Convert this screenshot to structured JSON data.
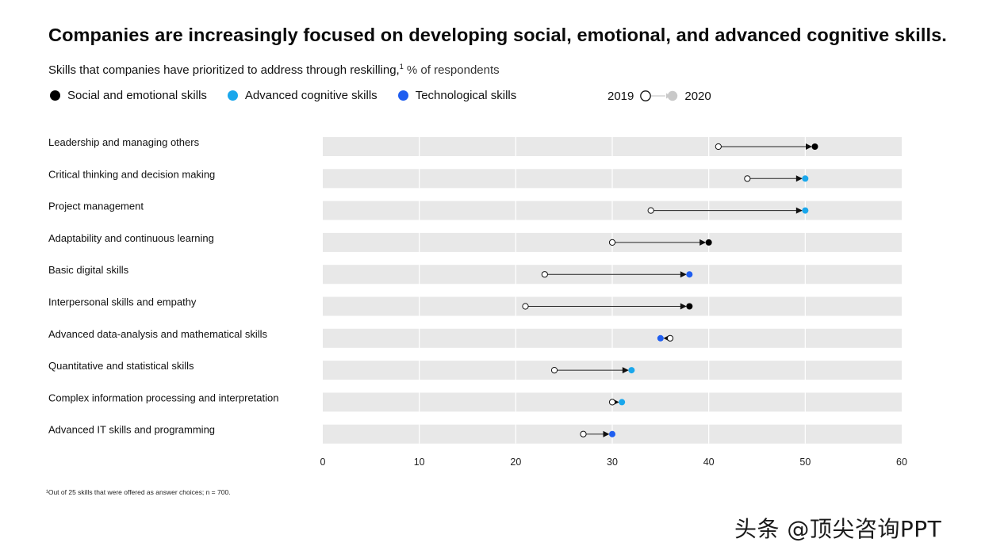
{
  "header": {
    "title": "Companies are increasingly focused on developing social, emotional, and advanced cognitive skills.",
    "subtitle_main": "Skills that companies have prioritized to address through reskilling,",
    "subtitle_sup": "1",
    "subtitle_unit": " % of respondents"
  },
  "legend": {
    "categories": [
      {
        "label": "Social and emotional skills",
        "color": "#000000"
      },
      {
        "label": "Advanced cognitive skills",
        "color": "#1aa7ec"
      },
      {
        "label": "Technological skills",
        "color": "#1f5ef0"
      }
    ],
    "year_from": "2019",
    "year_to": "2020"
  },
  "chart_data": {
    "type": "dumbbell",
    "title": "Companies are increasingly focused on developing social, emotional, and advanced cognitive skills.",
    "xlabel": "",
    "ylabel": "",
    "xlim": [
      0,
      60
    ],
    "x_ticks": [
      0,
      10,
      20,
      30,
      40,
      50,
      60
    ],
    "grid": true,
    "categories": [
      "Leadership and managing others",
      "Critical thinking and decision making",
      "Project management",
      "Adaptability and continuous learning",
      "Basic digital skills",
      "Interpersonal skills and empathy",
      "Advanced data-analysis and mathematical skills",
      "Quantitative and statistical skills",
      "Complex information processing and interpretation",
      "Advanced IT skills and programming"
    ],
    "series": [
      {
        "name": "2019",
        "values": [
          41,
          44,
          34,
          30,
          23,
          21,
          36,
          24,
          30,
          27
        ]
      },
      {
        "name": "2020",
        "values": [
          51,
          50,
          50,
          40,
          38,
          38,
          35,
          32,
          31,
          30
        ]
      }
    ],
    "skill_type": [
      "social",
      "cognitive",
      "cognitive",
      "social",
      "tech",
      "social",
      "tech",
      "cognitive",
      "cognitive",
      "tech"
    ],
    "type_colors": {
      "social": "#000000",
      "cognitive": "#1aa7ec",
      "tech": "#1f5ef0"
    }
  },
  "footnote": "¹Out of 25 skills that were offered as answer choices; n = 700.",
  "watermark": "头条 @顶尖咨询PPT"
}
